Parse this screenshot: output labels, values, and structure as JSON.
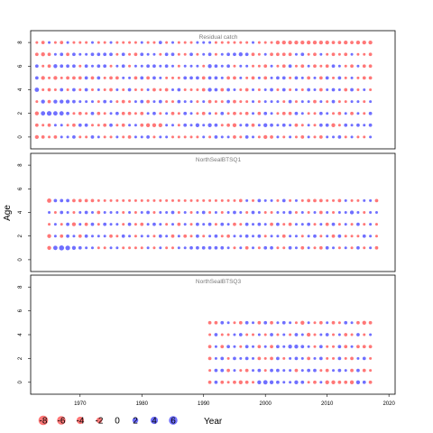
{
  "chart_data": {
    "type": "scatter",
    "subtype": "bubble residual plot",
    "ylabel": "Age",
    "xlabel": "Year",
    "x_ticks": [
      1970,
      1980,
      1990,
      2000,
      2010,
      2020
    ],
    "y_ticks": [
      0,
      2,
      4,
      6,
      8
    ],
    "xlim": [
      1962,
      2021
    ],
    "ylim": [
      -1,
      9
    ],
    "colors": {
      "positive": "#3f3fff",
      "negative": "#ff4a4a"
    },
    "legend": {
      "values": [
        -8,
        -6,
        -4,
        -2,
        0,
        2,
        4,
        6
      ],
      "labels": [
        "-8",
        "-6",
        "-4",
        "-2",
        "0",
        "2",
        "4",
        "6"
      ]
    },
    "panels": [
      {
        "title": "Residual catch",
        "years": [
          1963,
          2017
        ],
        "ages": [
          0,
          1,
          2,
          3,
          4,
          5,
          6,
          7,
          8
        ],
        "residuals": [
          [
            -3,
            -2,
            -1,
            -2,
            1,
            1,
            2,
            -1,
            -1,
            2,
            1,
            -1,
            -1,
            1,
            -1,
            -2,
            1,
            1,
            2,
            -1,
            1,
            1,
            -1,
            -1,
            -1,
            -1,
            -1,
            1,
            -1,
            2,
            1,
            1,
            -2,
            -1,
            2,
            1,
            -1,
            -3,
            -2,
            1,
            -1,
            1,
            -1,
            -2,
            1,
            -1,
            -2,
            1,
            1,
            2,
            -1,
            1,
            -1,
            -1,
            1
          ],
          [
            -2,
            -1,
            -2,
            1,
            1,
            -1,
            -2,
            2,
            2,
            -1,
            -1,
            -2,
            2,
            -1,
            -2,
            1,
            1,
            -2,
            -3,
            -3,
            -3,
            1,
            1,
            -1,
            2,
            1,
            3,
            1,
            3,
            2,
            -1,
            -2,
            -3,
            1,
            2,
            -2,
            1,
            3,
            2,
            1,
            2,
            1,
            -2,
            -1,
            1,
            -1,
            2,
            2,
            -3,
            -1,
            2,
            1,
            2,
            1,
            2
          ],
          [
            -3,
            4,
            5,
            4,
            4,
            2,
            -1,
            -2,
            -1,
            2,
            -2,
            -1,
            1,
            2,
            -2,
            -2,
            -1,
            -2,
            1,
            2,
            -1,
            1,
            -2,
            -1,
            2,
            1,
            -1,
            -2,
            1,
            -1,
            2,
            -1,
            -2,
            -1,
            -2,
            1,
            -2,
            2,
            1,
            -1,
            -2,
            -2,
            2,
            1,
            -1,
            -1,
            2,
            1,
            -1,
            -2,
            1,
            -2,
            1,
            -1,
            2
          ],
          [
            -1,
            3,
            -2,
            3,
            3,
            3,
            2,
            1,
            1,
            1,
            -1,
            2,
            1,
            -1,
            -2,
            -1,
            1,
            2,
            -2,
            1,
            2,
            -1,
            -1,
            2,
            1,
            1,
            -1,
            1,
            -2,
            -1,
            -1,
            2,
            -2,
            -1,
            -1,
            1,
            -1,
            1,
            1,
            1,
            -1,
            2,
            -1,
            1,
            1,
            -2,
            1,
            -1,
            2,
            -1,
            -1,
            1,
            1,
            -1,
            1
          ],
          [
            4,
            -1,
            -2,
            -1,
            2,
            -1,
            2,
            -1,
            2,
            -1,
            1,
            -1,
            -2,
            1,
            -1,
            2,
            -1,
            -1,
            1,
            -2,
            -1,
            -2,
            1,
            2,
            -1,
            -1,
            -1,
            -2,
            3,
            2,
            -2,
            2,
            1,
            -1,
            -2,
            1,
            -1,
            1,
            2,
            -1,
            2,
            -1,
            1,
            -1,
            2,
            1,
            -2,
            1,
            2,
            1,
            -2,
            2,
            -1,
            1,
            -1
          ],
          [
            2,
            -3,
            -1,
            -3,
            -1,
            -2,
            -2,
            -2,
            2,
            -2,
            2,
            -1,
            -2,
            -2,
            1,
            1,
            -2,
            2,
            -2,
            2,
            1,
            -1,
            -1,
            -1,
            2,
            2,
            2,
            -2,
            2,
            2,
            1,
            -2,
            -2,
            1,
            -1,
            -2,
            1,
            -2,
            1,
            2,
            2,
            -1,
            2,
            1,
            -2,
            1,
            -2,
            2,
            -1,
            2,
            -1,
            1,
            -1,
            -2,
            -2
          ],
          [
            2,
            -1,
            -2,
            3,
            2,
            2,
            2,
            -1,
            2,
            1,
            2,
            2,
            -1,
            1,
            2,
            -1,
            1,
            1,
            2,
            2,
            1,
            2,
            1,
            -1,
            1,
            1,
            1,
            -1,
            3,
            2,
            1,
            2,
            -1,
            1,
            1,
            -1,
            -1,
            -2,
            1,
            -1,
            -2,
            2,
            -1,
            -2,
            1,
            -2,
            -1,
            -2,
            2,
            1,
            -1,
            -2,
            1,
            -2,
            -2
          ],
          [
            -2,
            -3,
            -2,
            1,
            2,
            -2,
            2,
            1,
            1,
            2,
            2,
            2,
            2,
            -1,
            2,
            -1,
            -2,
            2,
            1,
            1,
            -1,
            2,
            2,
            -1,
            -1,
            2,
            -1,
            1,
            2,
            -1,
            1,
            2,
            2,
            3,
            2,
            -2,
            -1,
            1,
            -2,
            -2,
            -2,
            -2,
            1,
            2,
            -1,
            -2,
            1,
            -1,
            -2,
            -1,
            -2,
            1,
            -1,
            -1,
            -2
          ],
          [
            -1,
            -2,
            1,
            -1,
            -2,
            1,
            -1,
            -1,
            -1,
            1,
            -1,
            -1,
            1,
            -1,
            -1,
            -1,
            -1,
            1,
            -1,
            -1,
            2,
            -1,
            1,
            -1,
            -1,
            -1,
            1,
            1,
            1,
            -1,
            -1,
            -1,
            -1,
            -1,
            -1,
            1,
            -1,
            -1,
            -1,
            -3,
            -3,
            -3,
            -3,
            -3,
            -3,
            -3,
            -3,
            -3,
            -2,
            -2,
            -3,
            -2,
            -3,
            -3,
            -3
          ]
        ]
      },
      {
        "title": "NorthSealBTSQ1",
        "years": [
          1965,
          2018
        ],
        "ages": [
          1,
          2,
          3,
          4,
          5
        ],
        "residuals": [
          [
            -3,
            4,
            6,
            5,
            3,
            2,
            1,
            1,
            -1,
            -1,
            1,
            1,
            -1,
            -1,
            -1,
            -1,
            1,
            -1,
            1,
            -1,
            -1,
            1,
            1,
            2,
            2,
            2,
            2,
            2,
            2,
            1,
            -1,
            1,
            -2,
            1,
            -1,
            2,
            2,
            -1,
            -1,
            2,
            1,
            -2,
            1,
            -1,
            -2,
            2,
            1,
            -1,
            1,
            -1,
            2,
            -1,
            1,
            -2
          ],
          [
            -3,
            1,
            -2,
            2,
            1,
            -2,
            2,
            1,
            1,
            1,
            -2,
            -1,
            2,
            1,
            -1,
            1,
            1,
            -1,
            2,
            1,
            -2,
            1,
            -2,
            -1,
            2,
            -1,
            1,
            2,
            -1,
            -2,
            1,
            1,
            2,
            1,
            2,
            -1,
            1,
            1,
            -2,
            1,
            1,
            -1,
            1,
            2,
            -1,
            1,
            -2,
            2,
            -1,
            -1,
            -1,
            2,
            1,
            -1
          ],
          [
            -1,
            1,
            -1,
            2,
            -3,
            1,
            -2,
            2,
            -1,
            2,
            1,
            1,
            -1,
            2,
            -1,
            -2,
            1,
            2,
            1,
            -1,
            1,
            -2,
            1,
            -1,
            2,
            1,
            2,
            -1,
            2,
            1,
            -2,
            -1,
            2,
            1,
            2,
            1,
            -2,
            2,
            -1,
            -2,
            1,
            1,
            2,
            -1,
            1,
            -2,
            2,
            -1,
            1,
            -1,
            2,
            -1,
            1,
            -1
          ],
          [
            1,
            -1,
            2,
            1,
            -1,
            1,
            2,
            1,
            -2,
            1,
            1,
            1,
            -1,
            1,
            -1,
            1,
            2,
            -1,
            1,
            1,
            2,
            -1,
            1,
            -1,
            1,
            2,
            -1,
            1,
            -1,
            1,
            2,
            1,
            -1,
            2,
            1,
            -1,
            -1,
            1,
            1,
            2,
            -1,
            1,
            -1,
            1,
            -2,
            1,
            -1,
            1,
            1,
            3,
            1,
            -1,
            1,
            1
          ],
          [
            -4,
            2,
            2,
            2,
            -2,
            -2,
            -2,
            -2,
            -1,
            -1,
            -1,
            -1,
            -1,
            -1,
            -1,
            -1,
            -1,
            -1,
            -1,
            -1,
            -1,
            -1,
            -1,
            -1,
            -1,
            -1,
            -1,
            -1,
            -1,
            -1,
            -1,
            -2,
            1,
            -1,
            2,
            1,
            1,
            -1,
            2,
            -1,
            1,
            -1,
            -2,
            -2,
            -2,
            -1,
            -1,
            -2,
            1,
            -1,
            -1,
            1,
            1,
            -2
          ]
        ]
      },
      {
        "title": "NorthSealBTSQ3",
        "years": [
          1991,
          2017
        ],
        "ages": [
          0,
          1,
          2,
          3,
          4,
          5
        ],
        "residuals": [
          [
            -2,
            2,
            -2,
            -1,
            -2,
            -3,
            -2,
            -1,
            3,
            4,
            3,
            2,
            1,
            1,
            3,
            2,
            -1,
            -2,
            1,
            -3,
            -3,
            -2,
            -2,
            -3,
            3,
            2,
            -2
          ],
          [
            -1,
            2,
            2,
            -2,
            1,
            -1,
            -2,
            1,
            2,
            -1,
            2,
            2,
            1,
            1,
            -2,
            1,
            2,
            2,
            -1,
            -2,
            1,
            2,
            1,
            -2,
            2,
            -2,
            -1
          ],
          [
            -2,
            1,
            2,
            -1,
            2,
            1,
            2,
            1,
            -2,
            -1,
            -2,
            2,
            -1,
            1,
            2,
            1,
            -2,
            1,
            2,
            -1,
            -1,
            2,
            -1,
            -2,
            1,
            2,
            -1
          ],
          [
            -2,
            1,
            -2,
            2,
            1,
            -1,
            2,
            1,
            -2,
            1,
            -2,
            2,
            1,
            3,
            3,
            2,
            1,
            -1,
            2,
            -1,
            -1,
            2,
            -2,
            1,
            -2,
            -2,
            -2
          ],
          [
            -1,
            2,
            -1,
            -1,
            1,
            2,
            -1,
            -1,
            1,
            -1,
            2,
            -1,
            1,
            -1,
            2,
            1,
            -3,
            -1,
            1,
            2,
            -1,
            1,
            -2,
            -1,
            2,
            -1,
            1
          ],
          [
            -2,
            -2,
            2,
            1,
            -1,
            -2,
            2,
            1,
            -2,
            2,
            -2,
            1,
            2,
            1,
            -1,
            -3,
            1,
            -1,
            -2,
            1,
            -2,
            -1,
            2,
            1,
            -2,
            -3,
            -2
          ]
        ]
      }
    ]
  }
}
